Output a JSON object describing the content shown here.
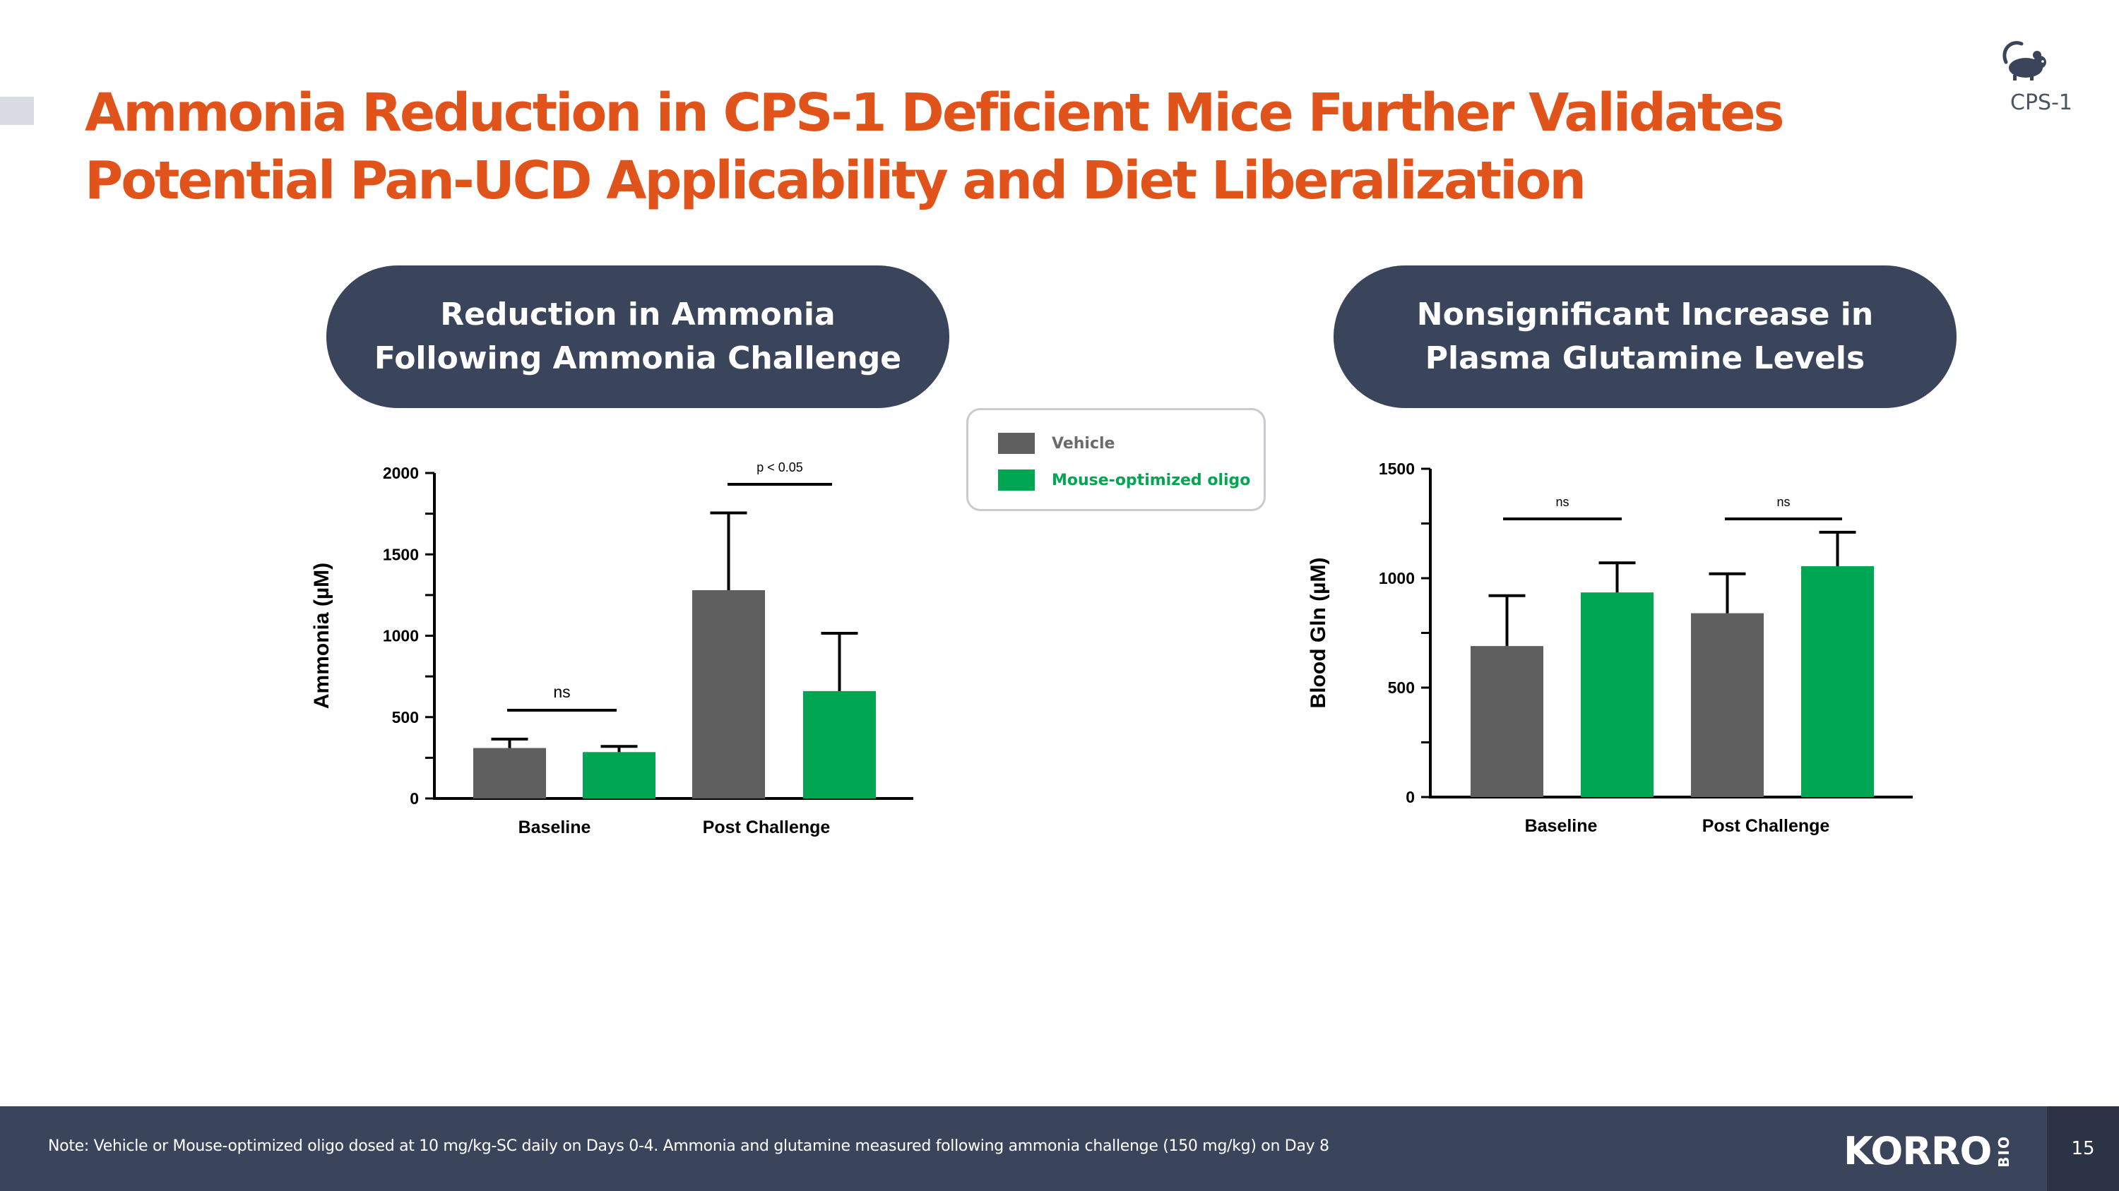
{
  "slide": {
    "title_line1": "Ammonia Reduction in CPS-1 Deficient Mice Further Validates",
    "title_line2": "Potential Pan-UCD Applicability and Diet Liberalization",
    "corner_label": "CPS-1",
    "corner_icon": "mouse-icon",
    "page_number": "15"
  },
  "panels": [
    {
      "line1": "Reduction in Ammonia",
      "line2": "Following Ammonia Challenge"
    },
    {
      "line1": "Nonsignificant Increase in",
      "line2": "Plasma Glutamine Levels"
    }
  ],
  "legend": [
    {
      "label": "Vehicle",
      "color": "#5f5f5f",
      "text_color": "#6b6b6b"
    },
    {
      "label": "Mouse-optimized oligo",
      "color": "#00a651",
      "text_color": "#00a651"
    }
  ],
  "footer": {
    "note": "Note: Vehicle or Mouse-optimized oligo dosed at 10 mg/kg-SC daily on Days 0-4. Ammonia and glutamine measured following ammonia challenge (150 mg/kg) on Day 8",
    "logo_text": "KORRO",
    "logo_sub": "BIO"
  },
  "colors": {
    "accent": "#e0541c",
    "navy": "#3a455c",
    "vehicle": "#5f5f5f",
    "oligo": "#00a651"
  },
  "chart_data": [
    {
      "type": "bar",
      "title": "Reduction in Ammonia Following Ammonia Challenge",
      "ylabel": "Ammonia (µM)",
      "xlabel": "",
      "ylim": [
        0,
        2000
      ],
      "yticks": [
        0,
        500,
        1000,
        1500,
        2000
      ],
      "categories": [
        "Baseline",
        "Post Challenge"
      ],
      "series": [
        {
          "name": "Vehicle",
          "values": [
            310,
            1280
          ],
          "error": [
            55,
            475
          ]
        },
        {
          "name": "Mouse-optimized oligo",
          "values": [
            285,
            660
          ],
          "error": [
            35,
            355
          ]
        }
      ],
      "annotations": [
        {
          "text": "ns",
          "group": 0
        },
        {
          "text": "p < 0.05",
          "group": 1
        }
      ]
    },
    {
      "type": "bar",
      "title": "Nonsignificant Increase in Plasma Glutamine Levels",
      "ylabel": "Blood Gln (µM)",
      "xlabel": "",
      "ylim": [
        0,
        1500
      ],
      "yticks": [
        0,
        500,
        1000,
        1500
      ],
      "categories": [
        "Baseline",
        "Post Challenge"
      ],
      "series": [
        {
          "name": "Vehicle",
          "values": [
            690,
            840
          ],
          "error": [
            230,
            180
          ]
        },
        {
          "name": "Mouse-optimized oligo",
          "values": [
            935,
            1055
          ],
          "error": [
            135,
            155
          ]
        }
      ],
      "annotations": [
        {
          "text": "ns",
          "group": 0
        },
        {
          "text": "ns",
          "group": 1
        }
      ]
    }
  ]
}
